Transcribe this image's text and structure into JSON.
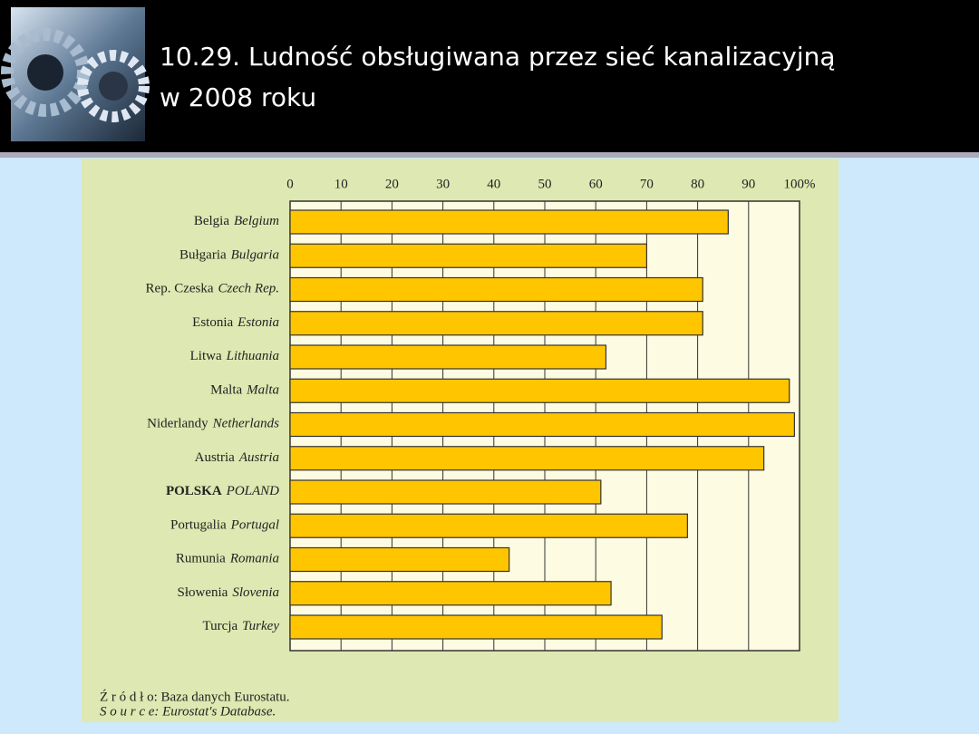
{
  "title_lines": [
    "10.29. Ludność obsługiwana przez sieć kanalizacyjną",
    "w 2008 roku"
  ],
  "chart_data": {
    "type": "bar",
    "orientation": "horizontal",
    "categories": [
      "Belgia",
      "Bułgaria",
      "Rep. Czeska",
      "Estonia",
      "Litwa",
      "Malta",
      "Niderlandy",
      "Austria",
      "POLSKA",
      "Portugalia",
      "Rumunia",
      "Słowenia",
      "Turcja"
    ],
    "categories_en": [
      "Belgium",
      "Bulgaria",
      "Czech Rep.",
      "Estonia",
      "Lithuania",
      "Malta",
      "Netherlands",
      "Austria",
      "POLAND",
      "Portugal",
      "Romania",
      "Slovenia",
      "Turkey"
    ],
    "values": [
      86,
      70,
      81,
      81,
      62,
      98,
      99,
      93,
      61,
      78,
      43,
      63,
      73
    ],
    "color": "#ffc600",
    "xlim": [
      0,
      100
    ],
    "xticks": [
      0,
      10,
      20,
      30,
      40,
      50,
      60,
      70,
      80,
      90,
      {
        "value": 100,
        "label": "100%"
      }
    ],
    "grid": true,
    "source": [
      "Ź r ó d ł o: Baza danych Eurostatu.",
      "S o u r c e: Eurostat's Database."
    ]
  }
}
